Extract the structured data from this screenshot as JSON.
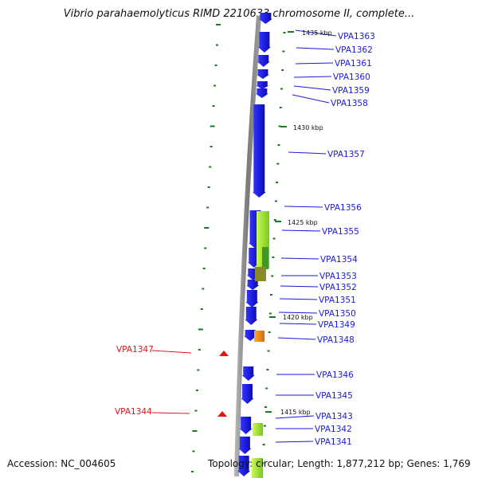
{
  "title": "Vibrio parahaemolyticus RIMD 2210633 chromosome II, complete...",
  "footer": {
    "accession": "Accession: NC_004605",
    "info": "Topology: circular; Length: 1,877,212 bp; Genes: 1,769"
  },
  "colors": {
    "gene_label": "#1a1ad6",
    "pseudo_label": "#d61a1a",
    "gene_feature": "#1f1fe6",
    "tick": "#1e7a1e",
    "backbone": "#808080",
    "green_feature": "#9ee61f",
    "olive_feature": "#8a8a2a",
    "orange_feature": "#f08a14",
    "red_marker": "#e01414"
  },
  "scale_labels": [
    "1435 kbp",
    "1430 kbp",
    "1425 kbp",
    "1420 kbp",
    "1415 kbp"
  ],
  "gene_labels": [
    "VPA1363",
    "VPA1362",
    "VPA1361",
    "VPA1360",
    "VPA1359",
    "VPA1358",
    "VPA1357",
    "VPA1356",
    "VPA1355",
    "VPA1354",
    "VPA1353",
    "VPA1352",
    "VPA1351",
    "VPA1350",
    "VPA1349",
    "VPA1348",
    "VPA1346",
    "VPA1345",
    "VPA1343",
    "VPA1342",
    "VPA1341"
  ],
  "left_labels": [
    "VPA1347",
    "VPA1344"
  ]
}
